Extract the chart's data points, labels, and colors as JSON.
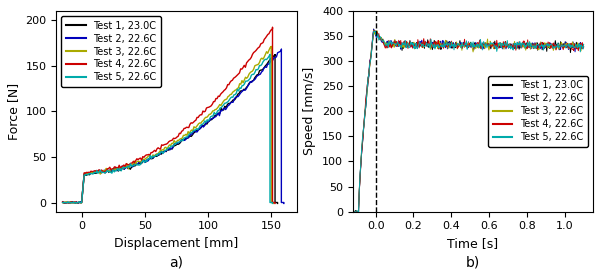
{
  "fig_width": 6.0,
  "fig_height": 2.8,
  "dpi": 100,
  "colors": {
    "test1": "#000000",
    "test2": "#0000bb",
    "test3": "#aaaa00",
    "test4": "#cc0000",
    "test5": "#00aaaa"
  },
  "legend_labels": [
    "Test 1, 23.0C",
    "Test 2, 22.6C",
    "Test 3, 22.6C",
    "Test 4, 22.6C",
    "Test 5, 22.6C"
  ],
  "subplot_a": {
    "xlabel": "Displacement [mm]",
    "ylabel": "Force [N]",
    "xlim": [
      -20,
      170
    ],
    "ylim": [
      -10,
      210
    ],
    "xticks": [
      0,
      50,
      100,
      150
    ],
    "yticks": [
      0,
      50,
      100,
      150,
      200
    ],
    "label": "a)"
  },
  "subplot_b": {
    "xlabel": "Time [s]",
    "ylabel": "Speed [mm/s]",
    "xlim": [
      -0.12,
      1.15
    ],
    "ylim": [
      0,
      400
    ],
    "xticks": [
      0.0,
      0.2,
      0.4,
      0.6,
      0.8,
      1.0
    ],
    "yticks": [
      0,
      50,
      100,
      150,
      200,
      250,
      300,
      350,
      400
    ],
    "label": "b)",
    "dashed_x": 0.0
  },
  "force_params": [
    {
      "x_end": 155,
      "y_max": 162,
      "plateau_y": 30
    },
    {
      "x_end": 160,
      "y_max": 168,
      "plateau_y": 31
    },
    {
      "x_end": 152,
      "y_max": 170,
      "plateau_y": 31
    },
    {
      "x_end": 153,
      "y_max": 192,
      "plateau_y": 32
    },
    {
      "x_end": 151,
      "y_max": 162,
      "plateau_y": 30
    }
  ]
}
